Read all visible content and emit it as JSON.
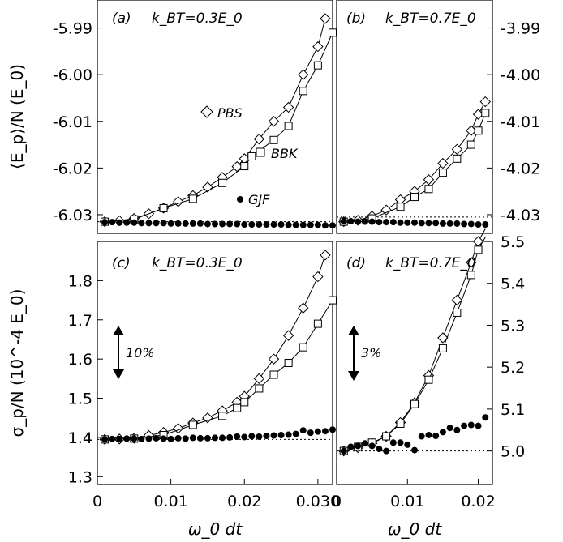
{
  "chart_data": [
    {
      "panel": "a",
      "type": "line",
      "label_letter": "(a)",
      "condition": "k_BT=0.3E_0",
      "xlim": [
        0,
        0.032
      ],
      "ylim": [
        -6.034,
        -5.984
      ],
      "yticks": [
        -5.99,
        -6.0,
        -6.01,
        -6.02,
        -6.03
      ],
      "ytick_labels": [
        "-5.99",
        "-6.00",
        "-6.01",
        "-6.02",
        "-6.03"
      ],
      "reference_line": -6.0315,
      "series": [
        {
          "name": "PBS",
          "marker": "diamond",
          "connected": true,
          "x": [
            0.001,
            0.003,
            0.005,
            0.007,
            0.009,
            0.011,
            0.013,
            0.015,
            0.017,
            0.019,
            0.02,
            0.022,
            0.024,
            0.026,
            0.028,
            0.03,
            0.031
          ],
          "y": [
            -6.0315,
            -6.0313,
            -6.0308,
            -6.0298,
            -6.0286,
            -6.0272,
            -6.0259,
            -6.0241,
            -6.022,
            -6.0197,
            -6.018,
            -6.0138,
            -6.01,
            -6.007,
            -6.0,
            -5.994,
            -5.988
          ]
        },
        {
          "name": "BBK",
          "marker": "square",
          "connected": true,
          "x": [
            0.001,
            0.005,
            0.009,
            0.013,
            0.017,
            0.02,
            0.021,
            0.024,
            0.026,
            0.028,
            0.03,
            0.032
          ],
          "y": [
            -6.0315,
            -6.031,
            -6.0286,
            -6.0266,
            -6.0232,
            -6.0196,
            -6.0175,
            -6.014,
            -6.011,
            -6.0035,
            -5.998,
            -5.991
          ]
        },
        {
          "name": "GJF",
          "marker": "filled-circle",
          "connected": false,
          "x": [
            0.001,
            0.002,
            0.003,
            0.004,
            0.005,
            0.006,
            0.007,
            0.008,
            0.009,
            0.01,
            0.011,
            0.012,
            0.013,
            0.014,
            0.015,
            0.016,
            0.017,
            0.018,
            0.019,
            0.02,
            0.021,
            0.022,
            0.023,
            0.024,
            0.025,
            0.026,
            0.027,
            0.028,
            0.029,
            0.03,
            0.031,
            0.032
          ],
          "y": [
            -6.0316,
            -6.0316,
            -6.0317,
            -6.0317,
            -6.0317,
            -6.0318,
            -6.0318,
            -6.0318,
            -6.0318,
            -6.0319,
            -6.0319,
            -6.0319,
            -6.0319,
            -6.0319,
            -6.032,
            -6.032,
            -6.032,
            -6.032,
            -6.032,
            -6.0321,
            -6.0321,
            -6.0321,
            -6.0321,
            -6.0321,
            -6.0321,
            -6.0322,
            -6.0322,
            -6.0322,
            -6.0322,
            -6.0322,
            -6.0323,
            -6.0323
          ]
        }
      ],
      "annotations": {
        "PBS": "PBS",
        "BBK": "BBK",
        "GJF": "GJF"
      }
    },
    {
      "panel": "b",
      "type": "line",
      "label_letter": "(b)",
      "condition": "k_BT=0.7E_0",
      "xlim": [
        0,
        0.022
      ],
      "ylim": [
        -4.034,
        -3.984
      ],
      "yticks": [
        -3.99,
        -4.0,
        -4.01,
        -4.02,
        -4.03
      ],
      "ytick_labels": [
        "-3.99",
        "-4.00",
        "-4.01",
        "-4.02",
        "-4.03"
      ],
      "reference_line": -4.0305,
      "series": [
        {
          "name": "PBS",
          "marker": "diamond",
          "connected": true,
          "x": [
            0.001,
            0.003,
            0.005,
            0.007,
            0.009,
            0.011,
            0.013,
            0.015,
            0.017,
            0.019,
            0.02,
            0.021
          ],
          "y": [
            -4.0315,
            -4.0312,
            -4.0303,
            -4.029,
            -4.0268,
            -4.025,
            -4.0225,
            -4.019,
            -4.016,
            -4.012,
            -4.0085,
            -4.0058
          ]
        },
        {
          "name": "BBK",
          "marker": "square",
          "connected": true,
          "x": [
            0.001,
            0.005,
            0.009,
            0.011,
            0.013,
            0.015,
            0.017,
            0.019,
            0.02,
            0.021
          ],
          "y": [
            -4.0315,
            -4.0308,
            -4.0283,
            -4.0262,
            -4.0245,
            -4.021,
            -4.018,
            -4.015,
            -4.012,
            -4.0082
          ]
        },
        {
          "name": "GJF",
          "marker": "filled-circle",
          "connected": false,
          "x": [
            0.001,
            0.002,
            0.003,
            0.004,
            0.005,
            0.006,
            0.007,
            0.008,
            0.009,
            0.01,
            0.011,
            0.012,
            0.013,
            0.014,
            0.015,
            0.016,
            0.017,
            0.018,
            0.019,
            0.02,
            0.021
          ],
          "y": [
            -4.0314,
            -4.0314,
            -4.0315,
            -4.0315,
            -4.0315,
            -4.0316,
            -4.0316,
            -4.0316,
            -4.0317,
            -4.0317,
            -4.0317,
            -4.0318,
            -4.0318,
            -4.0318,
            -4.0319,
            -4.0319,
            -4.0319,
            -4.032,
            -4.032,
            -4.0321,
            -4.0321
          ]
        }
      ]
    },
    {
      "panel": "c",
      "type": "line",
      "label_letter": "(c)",
      "condition": "k_BT=0.3E_0",
      "xlim": [
        0,
        0.032
      ],
      "ylim": [
        1.28,
        1.9
      ],
      "yticks": [
        1.3,
        1.4,
        1.5,
        1.6,
        1.7,
        1.8
      ],
      "ytick_labels": [
        "1.3",
        "1.4",
        "1.5",
        "1.6",
        "1.7",
        "1.8"
      ],
      "xticks": [
        0,
        0.01,
        0.02,
        0.03
      ],
      "xtick_labels": [
        "0",
        "0.01",
        "0.02",
        "0.030"
      ],
      "reference_line": 1.395,
      "arrow_label": "10%",
      "series": [
        {
          "name": "PBS",
          "marker": "diamond",
          "connected": true,
          "x": [
            0.001,
            0.003,
            0.005,
            0.007,
            0.009,
            0.011,
            0.013,
            0.015,
            0.017,
            0.019,
            0.02,
            0.022,
            0.024,
            0.026,
            0.028,
            0.03,
            0.031
          ],
          "y": [
            1.395,
            1.396,
            1.398,
            1.405,
            1.413,
            1.423,
            1.437,
            1.45,
            1.468,
            1.49,
            1.505,
            1.55,
            1.6,
            1.66,
            1.73,
            1.81,
            1.865
          ]
        },
        {
          "name": "BBK",
          "marker": "square",
          "connected": true,
          "x": [
            0.001,
            0.005,
            0.009,
            0.013,
            0.017,
            0.019,
            0.02,
            0.022,
            0.024,
            0.026,
            0.028,
            0.03,
            0.032
          ],
          "y": [
            1.395,
            1.397,
            1.406,
            1.432,
            1.455,
            1.475,
            1.49,
            1.525,
            1.56,
            1.59,
            1.63,
            1.69,
            1.75
          ]
        },
        {
          "name": "GJF",
          "marker": "filled-circle",
          "connected": false,
          "x": [
            0.001,
            0.002,
            0.003,
            0.004,
            0.005,
            0.006,
            0.007,
            0.008,
            0.009,
            0.01,
            0.011,
            0.012,
            0.013,
            0.014,
            0.015,
            0.016,
            0.017,
            0.018,
            0.019,
            0.02,
            0.021,
            0.022,
            0.023,
            0.024,
            0.025,
            0.026,
            0.027,
            0.028,
            0.029,
            0.03,
            0.031,
            0.032
          ],
          "y": [
            1.395,
            1.396,
            1.396,
            1.397,
            1.397,
            1.396,
            1.397,
            1.398,
            1.397,
            1.396,
            1.398,
            1.397,
            1.399,
            1.398,
            1.398,
            1.399,
            1.399,
            1.4,
            1.402,
            1.401,
            1.403,
            1.402,
            1.404,
            1.405,
            1.406,
            1.407,
            1.409,
            1.418,
            1.412,
            1.415,
            1.416,
            1.42
          ]
        }
      ]
    },
    {
      "panel": "d",
      "type": "line",
      "label_letter": "(d)",
      "condition": "k_BT=0.7E_0",
      "xlim": [
        0,
        0.022
      ],
      "ylim": [
        4.92,
        5.5
      ],
      "yticks": [
        5.0,
        5.1,
        5.2,
        5.3,
        5.4,
        5.5
      ],
      "ytick_labels": [
        "5.0",
        "5.1",
        "5.2",
        "5.3",
        "5.4",
        "5.5"
      ],
      "xticks": [
        0,
        0.01,
        0.02
      ],
      "xtick_labels": [
        "0",
        "0.01",
        "0.02"
      ],
      "reference_line": 5.0,
      "arrow_label": "3%",
      "series": [
        {
          "name": "PBS",
          "marker": "diamond",
          "connected": true,
          "x": [
            0.001,
            0.003,
            0.005,
            0.007,
            0.009,
            0.011,
            0.013,
            0.015,
            0.017,
            0.019,
            0.02,
            0.021
          ],
          "y": [
            5.0,
            5.008,
            5.018,
            5.035,
            5.068,
            5.115,
            5.18,
            5.27,
            5.36,
            5.45,
            5.5,
            5.53
          ]
        },
        {
          "name": "BBK",
          "marker": "square",
          "connected": true,
          "x": [
            0.001,
            0.003,
            0.005,
            0.007,
            0.009,
            0.011,
            0.013,
            0.015,
            0.017,
            0.019,
            0.02,
            0.021
          ],
          "y": [
            5.0,
            5.01,
            5.02,
            5.035,
            5.065,
            5.112,
            5.17,
            5.245,
            5.33,
            5.42,
            5.48,
            5.51
          ]
        },
        {
          "name": "GJF",
          "marker": "filled-circle",
          "connected": false,
          "x": [
            0.001,
            0.002,
            0.003,
            0.004,
            0.005,
            0.006,
            0.007,
            0.008,
            0.009,
            0.01,
            0.011,
            0.012,
            0.013,
            0.014,
            0.015,
            0.016,
            0.017,
            0.018,
            0.019,
            0.02,
            0.021
          ],
          "y": [
            5.0,
            5.01,
            5.012,
            5.018,
            5.012,
            5.005,
            5.0,
            5.02,
            5.02,
            5.015,
            5.002,
            5.035,
            5.038,
            5.036,
            5.045,
            5.055,
            5.05,
            5.06,
            5.062,
            5.06,
            5.08
          ]
        }
      ]
    }
  ],
  "figure": {
    "ylabel_top": "⟨E_p⟩/N (E_0)",
    "ylabel_bottom": "σ_p/N (10^-4 E_0)",
    "xlabel": "ω_0 dt",
    "labels": {
      "a_letter": "(a)",
      "b_letter": "(b)",
      "c_letter": "(c)",
      "d_letter": "(d)",
      "kBT_03": "k_BT=0.3E_0",
      "kBT_07": "k_BT=0.7E_0",
      "PBS": "PBS",
      "BBK": "BBK",
      "GJF": "GJF",
      "pct10": "10%",
      "pct3": "3%"
    }
  }
}
